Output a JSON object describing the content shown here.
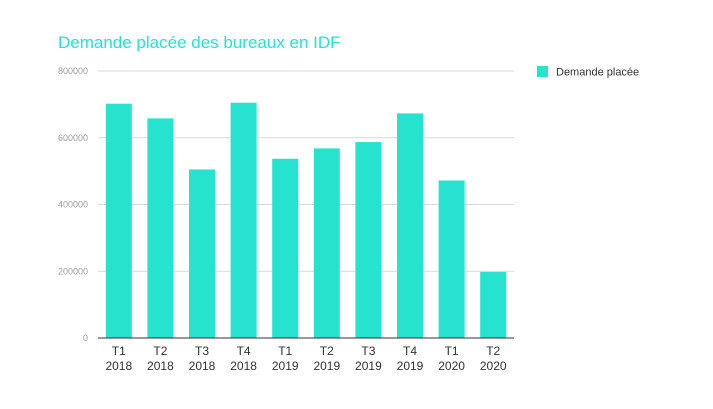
{
  "chart_data": {
    "type": "bar",
    "title": "Demande placée des bureaux en IDF",
    "categories": [
      [
        "T1",
        "2018"
      ],
      [
        "T2",
        "2018"
      ],
      [
        "T3",
        "2018"
      ],
      [
        "T4",
        "2018"
      ],
      [
        "T1",
        "2019"
      ],
      [
        "T2",
        "2019"
      ],
      [
        "T3",
        "2019"
      ],
      [
        "T4",
        "2019"
      ],
      [
        "T1",
        "2020"
      ],
      [
        "T2",
        "2020"
      ]
    ],
    "series": [
      {
        "name": "Demande placée",
        "values": [
          702000,
          658000,
          505000,
          705000,
          537000,
          568000,
          587000,
          673000,
          472000,
          198000
        ]
      }
    ],
    "yticks": [
      "0",
      "200000",
      "400000",
      "600000",
      "800000"
    ],
    "ylim": [
      0,
      800000
    ],
    "grid": true,
    "legend_position": "right",
    "colors": {
      "bar": "#26e3cf",
      "title": "#26e3cf",
      "grid": "#d9d9d9",
      "axis": "#333333"
    }
  }
}
